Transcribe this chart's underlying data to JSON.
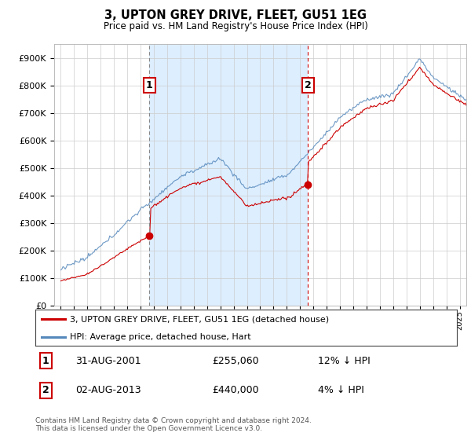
{
  "title": "3, UPTON GREY DRIVE, FLEET, GU51 1EG",
  "subtitle": "Price paid vs. HM Land Registry's House Price Index (HPI)",
  "footer": "Contains HM Land Registry data © Crown copyright and database right 2024.\nThis data is licensed under the Open Government Licence v3.0.",
  "legend_line1": "3, UPTON GREY DRIVE, FLEET, GU51 1EG (detached house)",
  "legend_line2": "HPI: Average price, detached house, Hart",
  "annotation1_label": "1",
  "annotation1_date": "31-AUG-2001",
  "annotation1_price": "£255,060",
  "annotation1_hpi": "12% ↓ HPI",
  "annotation2_label": "2",
  "annotation2_date": "02-AUG-2013",
  "annotation2_price": "£440,000",
  "annotation2_hpi": "4% ↓ HPI",
  "red_line_color": "#cc0000",
  "blue_line_color": "#5588bb",
  "shade_color": "#ddeeff",
  "background_color": "#eef4ff",
  "grid_color": "#cccccc",
  "ylim": [
    0,
    950000
  ],
  "yticks": [
    0,
    100000,
    200000,
    300000,
    400000,
    500000,
    600000,
    700000,
    800000,
    900000
  ],
  "sale1_year": 2001.67,
  "sale1_price": 255060,
  "sale2_year": 2013.58,
  "sale2_price": 440000,
  "vline1_x": 2001.67,
  "vline2_x": 2013.58,
  "marker1_y": 800000,
  "marker2_y": 800000,
  "xlim_left": 1994.5,
  "xlim_right": 2025.5
}
